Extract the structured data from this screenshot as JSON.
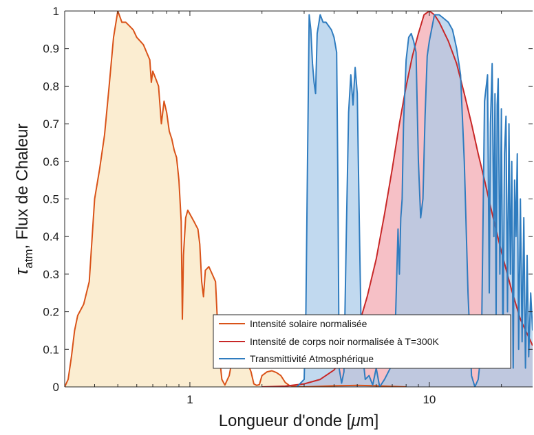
{
  "chart_data": {
    "type": "area",
    "title": "",
    "xlabel": "Longueur d'onde [μm]",
    "xlabel_parts": {
      "pre": "Longueur d'onde [",
      "mu": "μ",
      "post": "m]"
    },
    "ylabel": "τatm, Flux de Chaleur",
    "ylabel_parts": {
      "tau": "τ",
      "sub": "atm",
      "rest": ", Flux de Chaleur"
    },
    "x_scale": "log",
    "xlim": [
      0.3,
      27
    ],
    "ylim": [
      0,
      1
    ],
    "x_ticks": [
      1,
      10
    ],
    "x_tick_labels": [
      "1",
      "10"
    ],
    "y_ticks": [
      0,
      0.1,
      0.2,
      0.3,
      0.4,
      0.5,
      0.6,
      0.7,
      0.8,
      0.9,
      1
    ],
    "y_tick_labels": [
      "0",
      "0.1",
      "0.2",
      "0.3",
      "0.4",
      "0.5",
      "0.6",
      "0.7",
      "0.8",
      "0.9",
      "1"
    ],
    "grid": false,
    "legend_position": "bottom-right",
    "series": [
      {
        "name": "Intensité solaire normalisée",
        "line_color": "#D95319",
        "fill_color": "#F9E6BF",
        "points": [
          [
            0.3,
            0
          ],
          [
            0.31,
            0.02
          ],
          [
            0.32,
            0.08
          ],
          [
            0.33,
            0.15
          ],
          [
            0.34,
            0.19
          ],
          [
            0.36,
            0.22
          ],
          [
            0.38,
            0.28
          ],
          [
            0.4,
            0.5
          ],
          [
            0.42,
            0.58
          ],
          [
            0.44,
            0.67
          ],
          [
            0.46,
            0.8
          ],
          [
            0.48,
            0.93
          ],
          [
            0.5,
            1.0
          ],
          [
            0.52,
            0.97
          ],
          [
            0.54,
            0.97
          ],
          [
            0.56,
            0.96
          ],
          [
            0.58,
            0.95
          ],
          [
            0.6,
            0.93
          ],
          [
            0.62,
            0.92
          ],
          [
            0.64,
            0.91
          ],
          [
            0.66,
            0.89
          ],
          [
            0.68,
            0.87
          ],
          [
            0.69,
            0.81
          ],
          [
            0.7,
            0.84
          ],
          [
            0.72,
            0.82
          ],
          [
            0.74,
            0.8
          ],
          [
            0.76,
            0.7
          ],
          [
            0.78,
            0.76
          ],
          [
            0.8,
            0.73
          ],
          [
            0.82,
            0.68
          ],
          [
            0.84,
            0.66
          ],
          [
            0.86,
            0.63
          ],
          [
            0.88,
            0.61
          ],
          [
            0.9,
            0.55
          ],
          [
            0.92,
            0.44
          ],
          [
            0.93,
            0.18
          ],
          [
            0.94,
            0.35
          ],
          [
            0.96,
            0.45
          ],
          [
            0.98,
            0.47
          ],
          [
            1.0,
            0.46
          ],
          [
            1.02,
            0.45
          ],
          [
            1.04,
            0.44
          ],
          [
            1.06,
            0.43
          ],
          [
            1.08,
            0.42
          ],
          [
            1.1,
            0.38
          ],
          [
            1.12,
            0.28
          ],
          [
            1.14,
            0.24
          ],
          [
            1.16,
            0.31
          ],
          [
            1.2,
            0.32
          ],
          [
            1.24,
            0.3
          ],
          [
            1.28,
            0.28
          ],
          [
            1.32,
            0.1
          ],
          [
            1.36,
            0.02
          ],
          [
            1.4,
            0.005
          ],
          [
            1.46,
            0.03
          ],
          [
            1.5,
            0.07
          ],
          [
            1.55,
            0.075
          ],
          [
            1.6,
            0.078
          ],
          [
            1.65,
            0.074
          ],
          [
            1.7,
            0.068
          ],
          [
            1.75,
            0.06
          ],
          [
            1.8,
            0.04
          ],
          [
            1.85,
            0.008
          ],
          [
            1.9,
            0.004
          ],
          [
            1.95,
            0.006
          ],
          [
            2.0,
            0.03
          ],
          [
            2.1,
            0.04
          ],
          [
            2.2,
            0.043
          ],
          [
            2.3,
            0.038
          ],
          [
            2.4,
            0.03
          ],
          [
            2.5,
            0.012
          ],
          [
            2.6,
            0.004
          ],
          [
            2.7,
            0.002
          ],
          [
            2.8,
            0.001
          ],
          [
            3.0,
            0.0
          ],
          [
            4.0,
            0.003
          ],
          [
            5.0,
            0.004
          ],
          [
            6.0,
            0.003
          ],
          [
            8.0,
            0.0
          ]
        ]
      },
      {
        "name": "Intensité de corps noir normalisée à T=300K",
        "line_color": "#C82828",
        "fill_color": "#F2A7B0",
        "points": [
          [
            2.0,
            0.0
          ],
          [
            2.5,
            0.002
          ],
          [
            3.0,
            0.008
          ],
          [
            3.5,
            0.02
          ],
          [
            4.0,
            0.045
          ],
          [
            4.5,
            0.09
          ],
          [
            5.0,
            0.15
          ],
          [
            5.5,
            0.24
          ],
          [
            6.0,
            0.34
          ],
          [
            6.5,
            0.46
          ],
          [
            7.0,
            0.58
          ],
          [
            7.5,
            0.7
          ],
          [
            8.0,
            0.8
          ],
          [
            8.5,
            0.88
          ],
          [
            9.0,
            0.94
          ],
          [
            9.5,
            0.99
          ],
          [
            10.0,
            1.0
          ],
          [
            10.5,
            0.99
          ],
          [
            11.0,
            0.97
          ],
          [
            12.0,
            0.92
          ],
          [
            13.0,
            0.86
          ],
          [
            14.0,
            0.78
          ],
          [
            15.0,
            0.7
          ],
          [
            16.0,
            0.62
          ],
          [
            17.0,
            0.55
          ],
          [
            18.0,
            0.48
          ],
          [
            20.0,
            0.36
          ],
          [
            22.0,
            0.26
          ],
          [
            24.0,
            0.18
          ],
          [
            27.0,
            0.11
          ]
        ]
      },
      {
        "name": "Transmittivité Atmosphérique",
        "line_color": "#2F7CBF",
        "fill_color": "#A9CBE9",
        "points": [
          [
            2.8,
            0.0
          ],
          [
            3.0,
            0.02
          ],
          [
            3.05,
            0.2
          ],
          [
            3.1,
            0.6
          ],
          [
            3.15,
            0.99
          ],
          [
            3.2,
            0.95
          ],
          [
            3.25,
            0.86
          ],
          [
            3.3,
            0.81
          ],
          [
            3.35,
            0.78
          ],
          [
            3.4,
            0.94
          ],
          [
            3.5,
            0.99
          ],
          [
            3.6,
            0.97
          ],
          [
            3.7,
            0.97
          ],
          [
            3.8,
            0.96
          ],
          [
            3.9,
            0.95
          ],
          [
            4.0,
            0.93
          ],
          [
            4.1,
            0.89
          ],
          [
            4.15,
            0.55
          ],
          [
            4.2,
            0.05
          ],
          [
            4.3,
            0.01
          ],
          [
            4.4,
            0.04
          ],
          [
            4.5,
            0.4
          ],
          [
            4.6,
            0.73
          ],
          [
            4.7,
            0.83
          ],
          [
            4.8,
            0.75
          ],
          [
            4.9,
            0.85
          ],
          [
            5.0,
            0.78
          ],
          [
            5.1,
            0.44
          ],
          [
            5.2,
            0.12
          ],
          [
            5.4,
            0.02
          ],
          [
            5.6,
            0.03
          ],
          [
            5.8,
            0.005
          ],
          [
            6.0,
            0.05
          ],
          [
            6.2,
            0.0
          ],
          [
            6.5,
            0.02
          ],
          [
            7.0,
            0.06
          ],
          [
            7.2,
            0.15
          ],
          [
            7.4,
            0.42
          ],
          [
            7.5,
            0.3
          ],
          [
            7.6,
            0.45
          ],
          [
            7.7,
            0.5
          ],
          [
            7.8,
            0.7
          ],
          [
            8.0,
            0.87
          ],
          [
            8.2,
            0.93
          ],
          [
            8.4,
            0.94
          ],
          [
            8.6,
            0.92
          ],
          [
            8.8,
            0.89
          ],
          [
            9.0,
            0.6
          ],
          [
            9.2,
            0.45
          ],
          [
            9.4,
            0.5
          ],
          [
            9.6,
            0.72
          ],
          [
            9.8,
            0.88
          ],
          [
            10.0,
            0.92
          ],
          [
            10.5,
            0.99
          ],
          [
            11.0,
            0.99
          ],
          [
            11.5,
            0.98
          ],
          [
            12.0,
            0.97
          ],
          [
            12.5,
            0.95
          ],
          [
            13.0,
            0.9
          ],
          [
            13.5,
            0.83
          ],
          [
            14.0,
            0.6
          ],
          [
            14.5,
            0.25
          ],
          [
            15.0,
            0.03
          ],
          [
            15.5,
            0.0
          ],
          [
            16.0,
            0.02
          ],
          [
            16.5,
            0.1
          ],
          [
            17.0,
            0.76
          ],
          [
            17.5,
            0.83
          ],
          [
            17.8,
            0.25
          ],
          [
            18.0,
            0.7
          ],
          [
            18.3,
            0.86
          ],
          [
            18.6,
            0.4
          ],
          [
            18.8,
            0.78
          ],
          [
            19.0,
            0.18
          ],
          [
            19.2,
            0.75
          ],
          [
            19.4,
            0.82
          ],
          [
            19.7,
            0.3
          ],
          [
            20.0,
            0.74
          ],
          [
            20.3,
            0.1
          ],
          [
            20.6,
            0.62
          ],
          [
            20.9,
            0.72
          ],
          [
            21.2,
            0.2
          ],
          [
            21.5,
            0.7
          ],
          [
            21.8,
            0.3
          ],
          [
            22.1,
            0.6
          ],
          [
            22.4,
            0.05
          ],
          [
            22.7,
            0.55
          ],
          [
            23.0,
            0.4
          ],
          [
            23.3,
            0.62
          ],
          [
            23.6,
            0.1
          ],
          [
            24.0,
            0.5
          ],
          [
            24.4,
            0.12
          ],
          [
            24.8,
            0.45
          ],
          [
            25.2,
            0.05
          ],
          [
            25.6,
            0.35
          ],
          [
            26.0,
            0.08
          ],
          [
            26.5,
            0.25
          ],
          [
            27.0,
            0.15
          ]
        ]
      }
    ]
  }
}
